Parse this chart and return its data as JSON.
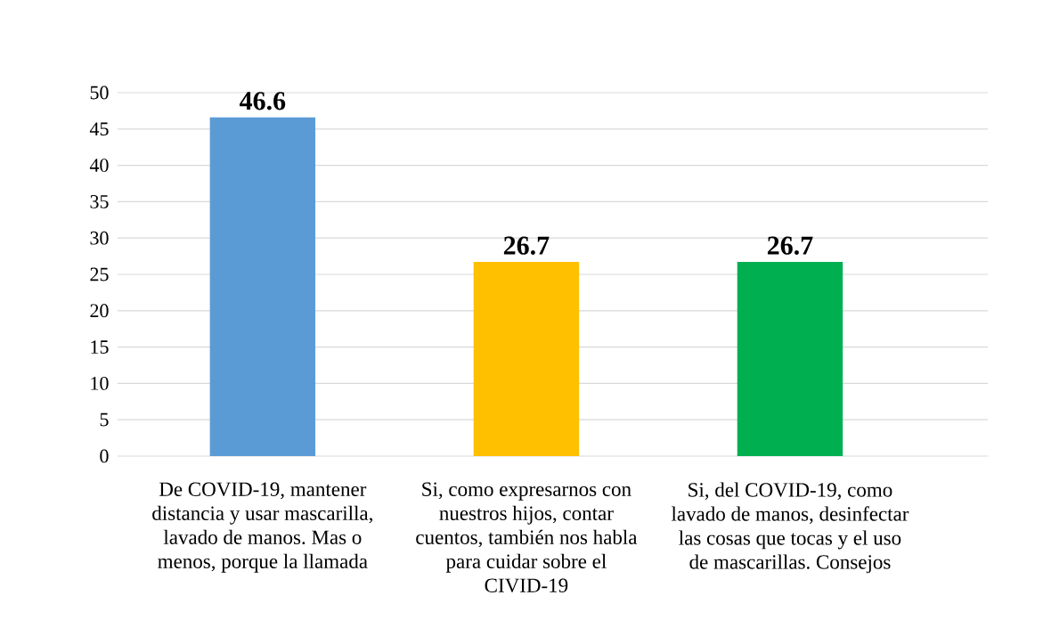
{
  "chart_data": {
    "type": "bar",
    "categories": [
      "De COVID-19, mantener distancia y usar mascarilla, lavado de manos. Mas o menos, porque la llamada",
      "Si, como expresarnos con nuestros hijos, contar cuentos, también nos habla para cuidar sobre el CIVID-19",
      "Si, del COVID-19, como lavado de manos, desinfectar las cosas que tocas y el uso de mascarillas. Consejos"
    ],
    "values": [
      46.6,
      26.7,
      26.7
    ],
    "colors": [
      "#5b9bd5",
      "#ffc000",
      "#00b050"
    ],
    "ylim": [
      0,
      50
    ],
    "yticks": [
      0,
      5,
      10,
      15,
      20,
      25,
      30,
      35,
      40,
      45,
      50
    ],
    "grid": "y",
    "data_labels": true
  }
}
